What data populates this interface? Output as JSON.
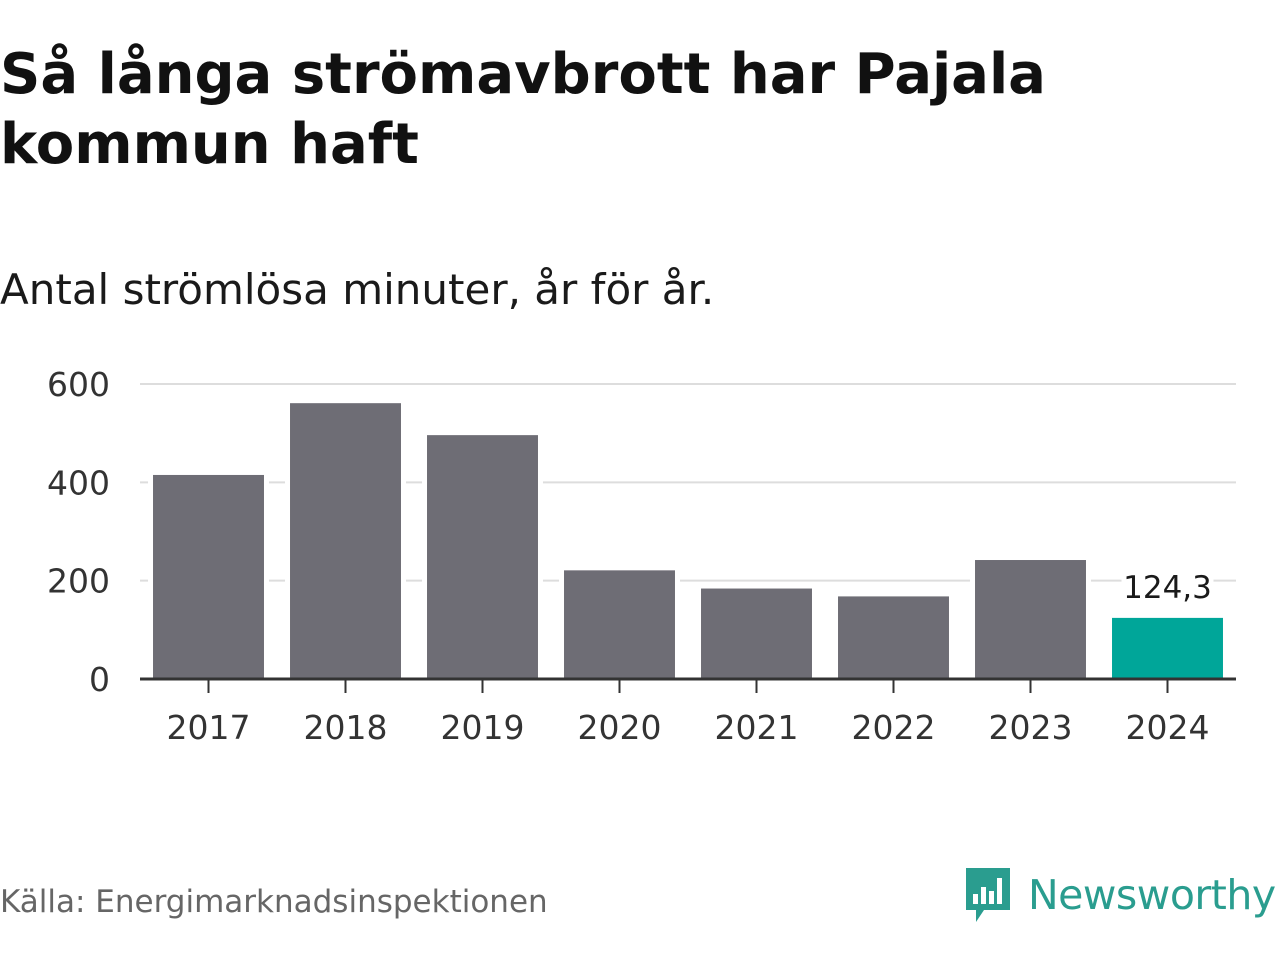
{
  "title": "Så långa strömavbrott har Pajala kommun haft",
  "subtitle": "Antal strömlösa minuter, år för år.",
  "source": "Källa: Energimarknadsinspektionen",
  "brand": {
    "name": "Newsworthy",
    "icon": "newsworthy-logo-icon",
    "color": "#2a9d8f"
  },
  "colors": {
    "bar": "#6e6d75",
    "highlight": "#00a699",
    "grid": "#dddddd",
    "axis": "#333333",
    "text": "#333333"
  },
  "chart_data": {
    "type": "bar",
    "title": "Så långa strömavbrott har Pajala kommun haft",
    "subtitle": "Antal strömlösa minuter, år för år.",
    "xlabel": "",
    "ylabel": "",
    "categories": [
      "2017",
      "2018",
      "2019",
      "2020",
      "2021",
      "2022",
      "2023",
      "2024"
    ],
    "values": [
      415,
      561,
      496,
      221,
      184,
      168,
      242,
      124.3
    ],
    "highlight_index": 7,
    "data_labels": [
      {
        "index": 7,
        "text": "124,3"
      }
    ],
    "ylim": [
      0,
      600
    ],
    "yticks": [
      0,
      200,
      400,
      600
    ],
    "ytick_labels": [
      "0",
      "200",
      "400",
      "600"
    ],
    "grid": true,
    "legend": "none"
  }
}
